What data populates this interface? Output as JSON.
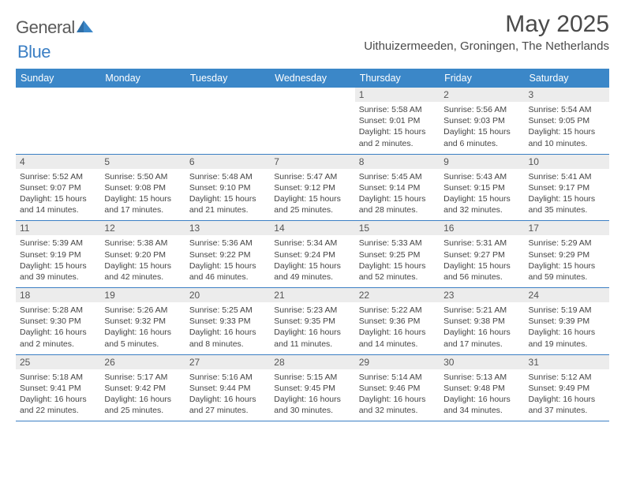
{
  "logo": {
    "text_general": "General",
    "text_blue": "Blue"
  },
  "title": {
    "month": "May 2025",
    "location": "Uithuizermeeden, Groningen, The Netherlands"
  },
  "colors": {
    "header_bg": "#3b87c8",
    "header_text": "#ffffff",
    "daynum_bg": "#ececec",
    "daynum_text": "#555555",
    "body_text": "#444444",
    "divider": "#3b7fc4",
    "logo_gray": "#5a5a5a",
    "logo_blue": "#3b7fc4",
    "background": "#ffffff"
  },
  "typography": {
    "title_fontsize": 30,
    "location_fontsize": 15,
    "weekday_fontsize": 12.5,
    "daynum_fontsize": 12,
    "body_fontsize": 10.5
  },
  "weekdays": [
    "Sunday",
    "Monday",
    "Tuesday",
    "Wednesday",
    "Thursday",
    "Friday",
    "Saturday"
  ],
  "weeks": [
    [
      {
        "n": "",
        "sunrise": "",
        "sunset": "",
        "daylight": ""
      },
      {
        "n": "",
        "sunrise": "",
        "sunset": "",
        "daylight": ""
      },
      {
        "n": "",
        "sunrise": "",
        "sunset": "",
        "daylight": ""
      },
      {
        "n": "",
        "sunrise": "",
        "sunset": "",
        "daylight": ""
      },
      {
        "n": "1",
        "sunrise": "Sunrise: 5:58 AM",
        "sunset": "Sunset: 9:01 PM",
        "daylight": "Daylight: 15 hours and 2 minutes."
      },
      {
        "n": "2",
        "sunrise": "Sunrise: 5:56 AM",
        "sunset": "Sunset: 9:03 PM",
        "daylight": "Daylight: 15 hours and 6 minutes."
      },
      {
        "n": "3",
        "sunrise": "Sunrise: 5:54 AM",
        "sunset": "Sunset: 9:05 PM",
        "daylight": "Daylight: 15 hours and 10 minutes."
      }
    ],
    [
      {
        "n": "4",
        "sunrise": "Sunrise: 5:52 AM",
        "sunset": "Sunset: 9:07 PM",
        "daylight": "Daylight: 15 hours and 14 minutes."
      },
      {
        "n": "5",
        "sunrise": "Sunrise: 5:50 AM",
        "sunset": "Sunset: 9:08 PM",
        "daylight": "Daylight: 15 hours and 17 minutes."
      },
      {
        "n": "6",
        "sunrise": "Sunrise: 5:48 AM",
        "sunset": "Sunset: 9:10 PM",
        "daylight": "Daylight: 15 hours and 21 minutes."
      },
      {
        "n": "7",
        "sunrise": "Sunrise: 5:47 AM",
        "sunset": "Sunset: 9:12 PM",
        "daylight": "Daylight: 15 hours and 25 minutes."
      },
      {
        "n": "8",
        "sunrise": "Sunrise: 5:45 AM",
        "sunset": "Sunset: 9:14 PM",
        "daylight": "Daylight: 15 hours and 28 minutes."
      },
      {
        "n": "9",
        "sunrise": "Sunrise: 5:43 AM",
        "sunset": "Sunset: 9:15 PM",
        "daylight": "Daylight: 15 hours and 32 minutes."
      },
      {
        "n": "10",
        "sunrise": "Sunrise: 5:41 AM",
        "sunset": "Sunset: 9:17 PM",
        "daylight": "Daylight: 15 hours and 35 minutes."
      }
    ],
    [
      {
        "n": "11",
        "sunrise": "Sunrise: 5:39 AM",
        "sunset": "Sunset: 9:19 PM",
        "daylight": "Daylight: 15 hours and 39 minutes."
      },
      {
        "n": "12",
        "sunrise": "Sunrise: 5:38 AM",
        "sunset": "Sunset: 9:20 PM",
        "daylight": "Daylight: 15 hours and 42 minutes."
      },
      {
        "n": "13",
        "sunrise": "Sunrise: 5:36 AM",
        "sunset": "Sunset: 9:22 PM",
        "daylight": "Daylight: 15 hours and 46 minutes."
      },
      {
        "n": "14",
        "sunrise": "Sunrise: 5:34 AM",
        "sunset": "Sunset: 9:24 PM",
        "daylight": "Daylight: 15 hours and 49 minutes."
      },
      {
        "n": "15",
        "sunrise": "Sunrise: 5:33 AM",
        "sunset": "Sunset: 9:25 PM",
        "daylight": "Daylight: 15 hours and 52 minutes."
      },
      {
        "n": "16",
        "sunrise": "Sunrise: 5:31 AM",
        "sunset": "Sunset: 9:27 PM",
        "daylight": "Daylight: 15 hours and 56 minutes."
      },
      {
        "n": "17",
        "sunrise": "Sunrise: 5:29 AM",
        "sunset": "Sunset: 9:29 PM",
        "daylight": "Daylight: 15 hours and 59 minutes."
      }
    ],
    [
      {
        "n": "18",
        "sunrise": "Sunrise: 5:28 AM",
        "sunset": "Sunset: 9:30 PM",
        "daylight": "Daylight: 16 hours and 2 minutes."
      },
      {
        "n": "19",
        "sunrise": "Sunrise: 5:26 AM",
        "sunset": "Sunset: 9:32 PM",
        "daylight": "Daylight: 16 hours and 5 minutes."
      },
      {
        "n": "20",
        "sunrise": "Sunrise: 5:25 AM",
        "sunset": "Sunset: 9:33 PM",
        "daylight": "Daylight: 16 hours and 8 minutes."
      },
      {
        "n": "21",
        "sunrise": "Sunrise: 5:23 AM",
        "sunset": "Sunset: 9:35 PM",
        "daylight": "Daylight: 16 hours and 11 minutes."
      },
      {
        "n": "22",
        "sunrise": "Sunrise: 5:22 AM",
        "sunset": "Sunset: 9:36 PM",
        "daylight": "Daylight: 16 hours and 14 minutes."
      },
      {
        "n": "23",
        "sunrise": "Sunrise: 5:21 AM",
        "sunset": "Sunset: 9:38 PM",
        "daylight": "Daylight: 16 hours and 17 minutes."
      },
      {
        "n": "24",
        "sunrise": "Sunrise: 5:19 AM",
        "sunset": "Sunset: 9:39 PM",
        "daylight": "Daylight: 16 hours and 19 minutes."
      }
    ],
    [
      {
        "n": "25",
        "sunrise": "Sunrise: 5:18 AM",
        "sunset": "Sunset: 9:41 PM",
        "daylight": "Daylight: 16 hours and 22 minutes."
      },
      {
        "n": "26",
        "sunrise": "Sunrise: 5:17 AM",
        "sunset": "Sunset: 9:42 PM",
        "daylight": "Daylight: 16 hours and 25 minutes."
      },
      {
        "n": "27",
        "sunrise": "Sunrise: 5:16 AM",
        "sunset": "Sunset: 9:44 PM",
        "daylight": "Daylight: 16 hours and 27 minutes."
      },
      {
        "n": "28",
        "sunrise": "Sunrise: 5:15 AM",
        "sunset": "Sunset: 9:45 PM",
        "daylight": "Daylight: 16 hours and 30 minutes."
      },
      {
        "n": "29",
        "sunrise": "Sunrise: 5:14 AM",
        "sunset": "Sunset: 9:46 PM",
        "daylight": "Daylight: 16 hours and 32 minutes."
      },
      {
        "n": "30",
        "sunrise": "Sunrise: 5:13 AM",
        "sunset": "Sunset: 9:48 PM",
        "daylight": "Daylight: 16 hours and 34 minutes."
      },
      {
        "n": "31",
        "sunrise": "Sunrise: 5:12 AM",
        "sunset": "Sunset: 9:49 PM",
        "daylight": "Daylight: 16 hours and 37 minutes."
      }
    ]
  ]
}
